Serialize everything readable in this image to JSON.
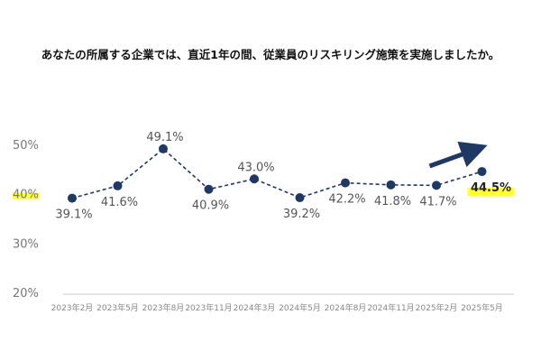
{
  "chart_data": {
    "type": "line",
    "title": "あなたの所属する企業では、直近1年の間、従業員のリスキリング施策を実施しましたか。",
    "categories": [
      "2023年2月",
      "2023年5月",
      "2023年8月",
      "2023年11月",
      "2024年3月",
      "2024年5月",
      "2024年8月",
      "2024年11月",
      "2025年2月",
      "2025年5月"
    ],
    "values": [
      39.1,
      41.6,
      49.1,
      40.9,
      43.0,
      39.2,
      42.2,
      41.8,
      41.7,
      44.5
    ],
    "value_labels": [
      "39.1%",
      "41.6%",
      "49.1%",
      "40.9%",
      "43.0%",
      "39.2%",
      "42.2%",
      "41.8%",
      "41.7%",
      "44.5%"
    ],
    "label_position": [
      "below",
      "below",
      "above",
      "below",
      "above",
      "below",
      "below",
      "below",
      "below",
      "below"
    ],
    "ylim": [
      20,
      50
    ],
    "yticks": [
      20,
      30,
      40,
      50
    ],
    "ytick_labels": [
      "20%",
      "30%",
      "40%",
      "50%"
    ],
    "line_style": "dashed",
    "marker": "circle",
    "grid": false,
    "highlighted_ytick": "40%",
    "highlighted_point_index": 9,
    "trend_arrow": "up-right near last point",
    "colors": {
      "series": "#1f3864",
      "highlight": "#ffff33",
      "axis": "#cccccc",
      "arrow": "#1f3864"
    }
  }
}
